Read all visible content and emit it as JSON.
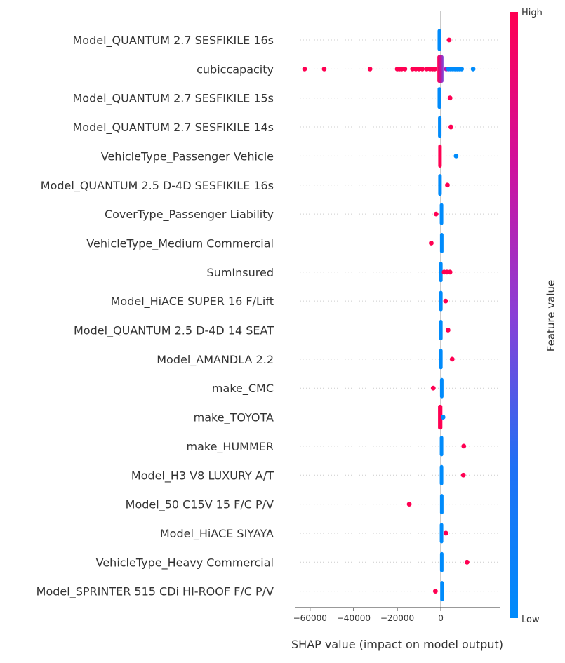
{
  "chart_data": {
    "type": "beeswarm",
    "xlabel": "SHAP value (impact on model output)",
    "xlim": [
      -67000,
      27000
    ],
    "xticks": [
      -60000,
      -40000,
      -20000,
      0
    ],
    "xtick_labels": [
      "−60000",
      "−40000",
      "−20000",
      "0"
    ],
    "colorbar": {
      "label": "Feature value",
      "high_label": "High",
      "low_label": "Low",
      "high_color": "#ff0052",
      "low_color": "#008bfb"
    },
    "features": [
      {
        "name": "Model_QUANTUM 2.7 SESFIKILE 16s",
        "base": {
          "from": -1500,
          "to": -800,
          "value": "low",
          "thick": 0.75
        },
        "points": [
          {
            "x": 3800,
            "value": "high"
          }
        ]
      },
      {
        "name": "cubiccapacity",
        "base": {
          "from": -1600,
          "to": 1200,
          "value": "mix",
          "thick": 0.95
        },
        "points": [
          {
            "x": -62500,
            "value": "high"
          },
          {
            "x": -53500,
            "value": "high"
          },
          {
            "x": -32500,
            "value": "high"
          },
          {
            "x": -20000,
            "value": "high"
          },
          {
            "x": -19000,
            "value": "high"
          },
          {
            "x": -18000,
            "value": "high"
          },
          {
            "x": -16500,
            "value": "high"
          },
          {
            "x": -13000,
            "value": "high"
          },
          {
            "x": -11500,
            "value": "high"
          },
          {
            "x": -10000,
            "value": "high"
          },
          {
            "x": -8500,
            "value": "high"
          },
          {
            "x": -6500,
            "value": "high"
          },
          {
            "x": -5000,
            "value": "high"
          },
          {
            "x": -3800,
            "value": "high"
          },
          {
            "x": -2800,
            "value": "high"
          },
          {
            "x": 2500,
            "value": "mid"
          },
          {
            "x": 3500,
            "value": "low"
          },
          {
            "x": 4500,
            "value": "low"
          },
          {
            "x": 5500,
            "value": "low"
          },
          {
            "x": 6500,
            "value": "low"
          },
          {
            "x": 7500,
            "value": "low"
          },
          {
            "x": 8500,
            "value": "low"
          },
          {
            "x": 9500,
            "value": "low"
          },
          {
            "x": 14800,
            "value": "low"
          }
        ]
      },
      {
        "name": "Model_QUANTUM 2.7 SESFIKILE 15s",
        "base": {
          "from": -1500,
          "to": -800,
          "value": "low",
          "thick": 0.75
        },
        "points": [
          {
            "x": 4200,
            "value": "high"
          }
        ]
      },
      {
        "name": "Model_QUANTUM 2.7 SESFIKILE 14s",
        "base": {
          "from": -1300,
          "to": -600,
          "value": "low",
          "thick": 0.75
        },
        "points": [
          {
            "x": 4600,
            "value": "high"
          }
        ]
      },
      {
        "name": "VehicleType_Passenger Vehicle",
        "base": {
          "from": -1200,
          "to": -300,
          "value": "high",
          "thick": 0.8
        },
        "points": [
          {
            "x": 7000,
            "value": "low"
          }
        ]
      },
      {
        "name": "Model_QUANTUM 2.5 D-4D SESFIKILE 16s",
        "base": {
          "from": -1200,
          "to": -500,
          "value": "low",
          "thick": 0.75
        },
        "points": [
          {
            "x": 3000,
            "value": "high"
          }
        ]
      },
      {
        "name": "CoverType_Passenger Liability",
        "base": {
          "from": -500,
          "to": 800,
          "value": "low",
          "thick": 0.75
        },
        "points": [
          {
            "x": -2200,
            "value": "high"
          }
        ]
      },
      {
        "name": "VehicleType_Medium Commercial",
        "base": {
          "from": -400,
          "to": 700,
          "value": "low",
          "thick": 0.7
        },
        "points": [
          {
            "x": -4400,
            "value": "high"
          }
        ]
      },
      {
        "name": "SumInsured",
        "base": {
          "from": -800,
          "to": 600,
          "value": "low",
          "thick": 0.7
        },
        "points": [
          {
            "x": 1500,
            "value": "high"
          },
          {
            "x": 2800,
            "value": "high"
          },
          {
            "x": 4200,
            "value": "high"
          }
        ]
      },
      {
        "name": "Model_HiACE SUPER 16 F/Lift",
        "base": {
          "from": -800,
          "to": -100,
          "value": "low",
          "thick": 0.7
        },
        "points": [
          {
            "x": 2200,
            "value": "high"
          }
        ]
      },
      {
        "name": "Model_QUANTUM 2.5 D-4D 14 SEAT",
        "base": {
          "from": -800,
          "to": -100,
          "value": "low",
          "thick": 0.7
        },
        "points": [
          {
            "x": 3300,
            "value": "high"
          }
        ]
      },
      {
        "name": "Model_AMANDLA 2.2",
        "base": {
          "from": -800,
          "to": -100,
          "value": "low",
          "thick": 0.7
        },
        "points": [
          {
            "x": 5200,
            "value": "high"
          }
        ]
      },
      {
        "name": "make_CMC",
        "base": {
          "from": -400,
          "to": 800,
          "value": "low",
          "thick": 0.7
        },
        "points": [
          {
            "x": -3500,
            "value": "high"
          }
        ]
      },
      {
        "name": "make_TOYOTA",
        "base": {
          "from": -1300,
          "to": 700,
          "value": "high",
          "thick": 0.85
        },
        "points": [
          {
            "x": 1000,
            "value": "low"
          }
        ]
      },
      {
        "name": "make_HUMMER",
        "base": {
          "from": -500,
          "to": 300,
          "value": "low",
          "thick": 0.7
        },
        "points": [
          {
            "x": 10500,
            "value": "high"
          }
        ]
      },
      {
        "name": "Model_H3 V8 LUXURY A/T",
        "base": {
          "from": -500,
          "to": 300,
          "value": "low",
          "thick": 0.7
        },
        "points": [
          {
            "x": 10300,
            "value": "high"
          }
        ]
      },
      {
        "name": "Model_50 C15V 15 F/C P/V",
        "base": {
          "from": -400,
          "to": 400,
          "value": "low",
          "thick": 0.7
        },
        "points": [
          {
            "x": -14500,
            "value": "high"
          }
        ]
      },
      {
        "name": "Model_HiACE SIYAYA",
        "base": {
          "from": -500,
          "to": 200,
          "value": "low",
          "thick": 0.7
        },
        "points": [
          {
            "x": 2300,
            "value": "high"
          }
        ]
      },
      {
        "name": "VehicleType_Heavy Commercial",
        "base": {
          "from": -400,
          "to": 300,
          "value": "low",
          "thick": 0.7
        },
        "points": [
          {
            "x": 12000,
            "value": "high"
          }
        ]
      },
      {
        "name": "Model_SPRINTER 515 CDi HI-ROOF F/C P/V",
        "base": {
          "from": -300,
          "to": 500,
          "value": "low",
          "thick": 0.7
        },
        "points": [
          {
            "x": -2500,
            "value": "high"
          }
        ]
      }
    ]
  }
}
